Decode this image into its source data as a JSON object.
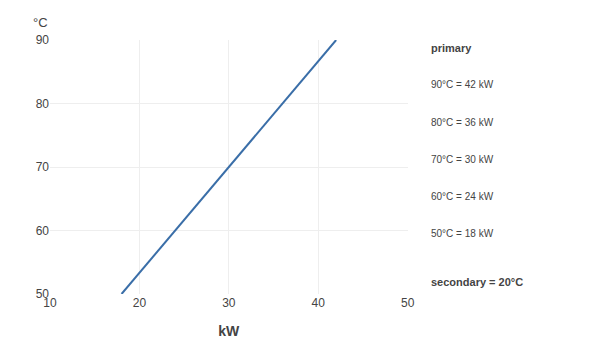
{
  "chart_data": {
    "type": "line",
    "x": [
      18,
      42
    ],
    "values": [
      50,
      90
    ],
    "color": "#3a6ea8",
    "xlim": [
      10,
      50
    ],
    "ylim": [
      50,
      90
    ],
    "xticks": [
      10,
      20,
      30,
      40,
      50
    ],
    "yticks": [
      50,
      60,
      70,
      80,
      90
    ],
    "grid": true,
    "ylabel": "°C",
    "xlabel": "kW",
    "annotations": [
      "primary",
      "90°C = 42 kW",
      "80°C = 36 kW",
      "70°C = 30 kW",
      "60°C = 24 kW",
      "50°C = 18 kW",
      "secondary = 20°C"
    ]
  }
}
